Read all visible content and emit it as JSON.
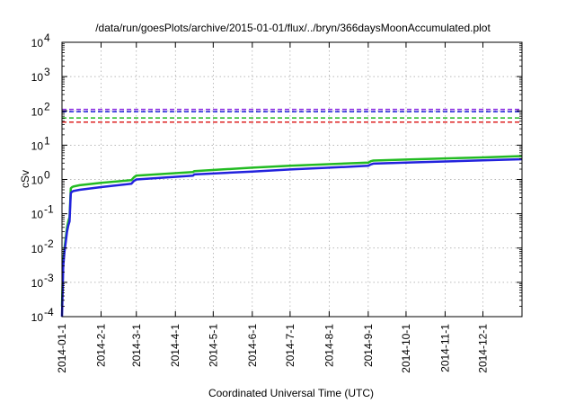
{
  "chart_data": {
    "type": "line",
    "title": "/data/run/goesPlots/archive/2015-01-01/flux/../bryn/366daysMoonAccumulated.plot",
    "xlabel": "Coordinated Universal Time (UTC)",
    "ylabel": "cSv",
    "y_scale": "log",
    "ylim": [
      0.0001,
      10000
    ],
    "xlim": [
      "2014-01-01",
      "2015-01-01"
    ],
    "grid": true,
    "x_ticks": [
      "2014-01-1",
      "2014-2-1",
      "2014-3-1",
      "2014-4-1",
      "2014-5-1",
      "2014-6-1",
      "2014-7-1",
      "2014-8-1",
      "2014-9-1",
      "2014-10-1",
      "2014-11-1",
      "2014-12-1"
    ],
    "y_ticks": [
      {
        "mant": "10",
        "exp": "-4",
        "value": 0.0001
      },
      {
        "mant": "10",
        "exp": "-3",
        "value": 0.001
      },
      {
        "mant": "10",
        "exp": "-2",
        "value": 0.01
      },
      {
        "mant": "10",
        "exp": "-1",
        "value": 0.1
      },
      {
        "mant": "10",
        "exp": "0",
        "value": 1
      },
      {
        "mant": "10",
        "exp": "1",
        "value": 10
      },
      {
        "mant": "10",
        "exp": "2",
        "value": 100
      },
      {
        "mant": "10",
        "exp": "3",
        "value": 1000
      },
      {
        "mant": "10",
        "exp": "4",
        "value": 10000
      }
    ],
    "reference_lines": [
      {
        "value": 110,
        "color": "#8a2be2"
      },
      {
        "value": 95,
        "color": "#2222dd"
      },
      {
        "value": 62,
        "color": "#22bb22"
      },
      {
        "value": 47,
        "color": "#dd2222"
      }
    ],
    "series": [
      {
        "color": "#22bb22",
        "x": [
          "2014-01-01",
          "2014-01-02",
          "2014-01-03",
          "2014-01-04",
          "2014-01-05",
          "2014-01-06",
          "2014-01-07",
          "2014-01-08",
          "2014-01-09",
          "2014-01-10",
          "2014-01-15",
          "2014-02-01",
          "2014-02-25",
          "2014-02-27",
          "2014-03-01",
          "2014-04-15",
          "2014-04-16",
          "2014-06-01",
          "2014-07-01",
          "2014-08-01",
          "2014-09-01",
          "2014-09-03",
          "2014-09-05",
          "2014-10-01",
          "2014-11-01",
          "2014-12-01",
          "2015-01-01"
        ],
        "values": [
          0.0002,
          0.004,
          0.01,
          0.02,
          0.04,
          0.06,
          0.08,
          0.55,
          0.6,
          0.62,
          0.68,
          0.8,
          0.95,
          1.15,
          1.3,
          1.65,
          1.75,
          2.2,
          2.5,
          2.8,
          3.1,
          3.4,
          3.55,
          3.8,
          4.1,
          4.4,
          4.8
        ]
      },
      {
        "color": "#2222dd",
        "x": [
          "2014-01-01",
          "2014-01-02",
          "2014-01-03",
          "2014-01-04",
          "2014-01-05",
          "2014-01-06",
          "2014-01-07",
          "2014-01-08",
          "2014-01-09",
          "2014-01-10",
          "2014-01-15",
          "2014-02-01",
          "2014-02-25",
          "2014-02-27",
          "2014-03-01",
          "2014-04-15",
          "2014-04-16",
          "2014-06-01",
          "2014-07-01",
          "2014-08-01",
          "2014-09-01",
          "2014-09-03",
          "2014-09-05",
          "2014-10-01",
          "2014-11-01",
          "2014-12-01",
          "2015-01-01"
        ],
        "values": [
          0.0001,
          0.003,
          0.008,
          0.015,
          0.03,
          0.045,
          0.06,
          0.4,
          0.44,
          0.46,
          0.5,
          0.6,
          0.75,
          0.9,
          1.0,
          1.3,
          1.4,
          1.7,
          1.95,
          2.2,
          2.5,
          2.75,
          2.9,
          3.1,
          3.35,
          3.6,
          3.9
        ]
      }
    ]
  }
}
